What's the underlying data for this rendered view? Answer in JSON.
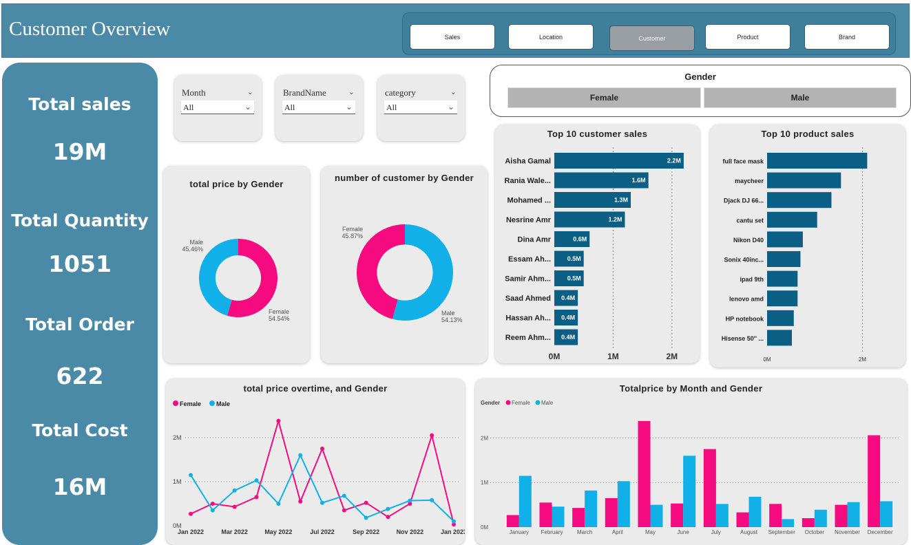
{
  "header": {
    "title": "Customer Overview"
  },
  "nav": {
    "sales": "Sales",
    "location": "Location",
    "customer": "Customer",
    "product": "Product",
    "brand": "Brand"
  },
  "kpis": {
    "total_sales_label": "Total sales",
    "total_sales_value": "19M",
    "total_quantity_label": "Total Quantity",
    "total_quantity_value": "1051",
    "total_order_label": "Total Order",
    "total_order_value": "622",
    "total_cost_label": "Total Cost",
    "total_cost_value": "16M"
  },
  "slicers": [
    {
      "label": "Month",
      "value": "All"
    },
    {
      "label": "BrandName",
      "value": "All"
    },
    {
      "label": "category",
      "value": "All"
    }
  ],
  "gender_slicer": {
    "title": "Gender",
    "female": "Female",
    "male": "Male"
  },
  "colors": {
    "female": "#f50a7f",
    "male": "#11b0e8",
    "bar": "#0b5f84",
    "header": "#4a8aa7"
  },
  "chart_data": [
    {
      "type": "pie",
      "title": "total price by Gender",
      "donut": true,
      "slices": [
        {
          "name": "Female",
          "value": 54.54,
          "label": "54.54%"
        },
        {
          "name": "Male",
          "value": 45.46,
          "label": "45.46%"
        }
      ]
    },
    {
      "type": "pie",
      "title": "number of customer by Gender",
      "donut": true,
      "slices": [
        {
          "name": "Male",
          "value": 54.13,
          "label": "54.13%"
        },
        {
          "name": "Female",
          "value": 45.87,
          "label": "45.87%"
        }
      ]
    },
    {
      "type": "bar",
      "orientation": "horizontal",
      "title": "Top 10 customer sales",
      "categories": [
        "Aisha Gamal",
        "Rania Wale...",
        "Mohamed ...",
        "Nesrine Amr",
        "Dina Amr",
        "Essam Ah...",
        "Samir Ahm...",
        "Saad Ahmed",
        "Hassan Ah...",
        "Reem Ahm..."
      ],
      "values": [
        2.2,
        1.6,
        1.3,
        1.2,
        0.6,
        0.5,
        0.5,
        0.4,
        0.4,
        0.4
      ],
      "data_labels": [
        "2.2M",
        "1.6M",
        "1.3M",
        "1.2M",
        "0.6M",
        "0.5M",
        "0.5M",
        "0.4M",
        "0.4M",
        "0.4M"
      ],
      "xticks": [
        "0M",
        "1M",
        "2M"
      ],
      "xlim": [
        0,
        2.4
      ]
    },
    {
      "type": "bar",
      "orientation": "horizontal",
      "title": "Top 10 product sales",
      "categories": [
        "full face mask",
        "maycheer",
        "Djack DJ 66...",
        "cantu set",
        "Nikon D40",
        "Sonix 40inc...",
        "ipad 9th",
        "lenovo amd",
        "HP notebook",
        "Hisense 50''  ..."
      ],
      "values": [
        2.1,
        1.55,
        1.35,
        1.05,
        0.75,
        0.7,
        0.64,
        0.64,
        0.56,
        0.52
      ],
      "xticks": [
        "0M",
        "2M"
      ],
      "xlim": [
        0,
        2.6
      ]
    },
    {
      "type": "line",
      "title": "total price overtime, and Gender",
      "legend": "top-left",
      "x": [
        "Jan 2022",
        "Feb 2022",
        "Mar 2022",
        "Apr 2022",
        "May 2022",
        "Jun 2022",
        "Jul 2022",
        "Aug 2022",
        "Sep 2022",
        "Oct 2022",
        "Nov 2022",
        "Dec 2022",
        "Jan 2023"
      ],
      "xticks": [
        "Jan 2022",
        "Mar 2022",
        "May 2022",
        "Jul 2022",
        "Sep 2022",
        "Nov 2022",
        "Jan 2023"
      ],
      "yticks": [
        "0M",
        "1M",
        "2M"
      ],
      "ylim": [
        0,
        2.5
      ],
      "series": [
        {
          "name": "Female",
          "values": [
            0.27,
            0.5,
            0.43,
            0.65,
            2.38,
            0.55,
            1.75,
            0.35,
            0.52,
            0.2,
            0.5,
            2.05,
            0.03
          ]
        },
        {
          "name": "Male",
          "values": [
            1.15,
            0.35,
            0.8,
            1.03,
            0.5,
            1.6,
            0.52,
            0.68,
            0.18,
            0.38,
            0.57,
            0.58,
            0.1
          ]
        }
      ]
    },
    {
      "type": "bar",
      "title": "Totalprice by Month and Gender",
      "legend_title": "Gender",
      "legend": "top-left",
      "categories": [
        "January",
        "February",
        "March",
        "April",
        "May",
        "June",
        "July",
        "August",
        "September",
        "October",
        "November",
        "December"
      ],
      "yticks": [
        "0M",
        "1M",
        "2M"
      ],
      "ylim": [
        0,
        2.5
      ],
      "series": [
        {
          "name": "Female",
          "values": [
            0.27,
            0.55,
            0.43,
            0.65,
            2.38,
            0.53,
            1.75,
            0.33,
            0.52,
            0.2,
            0.5,
            2.06
          ]
        },
        {
          "name": "Male",
          "values": [
            1.15,
            0.46,
            0.82,
            1.03,
            0.5,
            1.6,
            0.52,
            0.68,
            0.18,
            0.39,
            0.56,
            0.58
          ]
        }
      ]
    }
  ]
}
